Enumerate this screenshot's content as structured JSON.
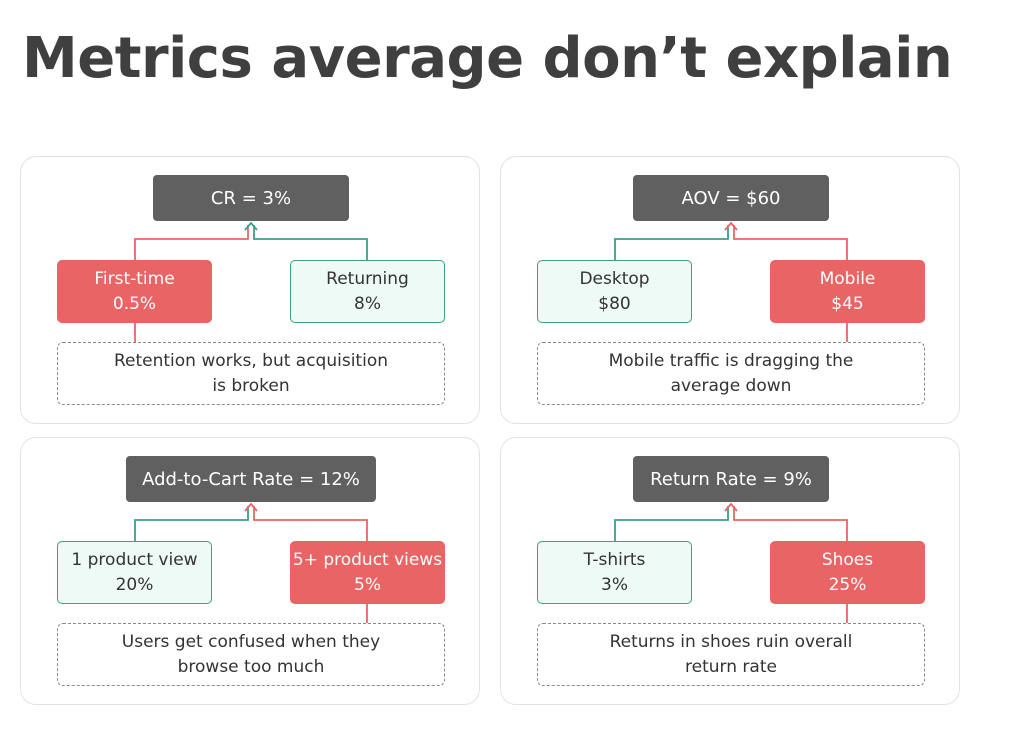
{
  "title": "Metrics average don’t explain",
  "colors": {
    "metric_box": "#606060",
    "good": "#3e9e86",
    "good_fill": "#eefaf6",
    "bad": "#e96464",
    "text": "#333333"
  },
  "cards": [
    {
      "metric": "CR = 3%",
      "left": {
        "label": "First-time",
        "value": "0.5%",
        "status": "bad"
      },
      "right": {
        "label": "Returning",
        "value": "8%",
        "status": "good"
      },
      "insight": {
        "line1": "Retention works, but acquisition",
        "line2": "is broken"
      }
    },
    {
      "metric": "AOV = $60",
      "left": {
        "label": "Desktop",
        "value": "$80",
        "status": "good"
      },
      "right": {
        "label": "Mobile",
        "value": "$45",
        "status": "bad"
      },
      "insight": {
        "line1": "Mobile traffic is dragging the",
        "line2": "average down"
      }
    },
    {
      "metric": "Add-to-Cart Rate = 12%",
      "left": {
        "label": "1 product view",
        "value": "20%",
        "status": "good"
      },
      "right": {
        "label": "5+ product views",
        "value": "5%",
        "status": "bad"
      },
      "insight": {
        "line1": "Users get confused when they",
        "line2": "browse too much"
      }
    },
    {
      "metric": "Return Rate = 9%",
      "left": {
        "label": "T-shirts",
        "value": "3%",
        "status": "good"
      },
      "right": {
        "label": "Shoes",
        "value": "25%",
        "status": "bad"
      },
      "insight": {
        "line1": "Returns in shoes ruin overall",
        "line2": "return rate"
      }
    }
  ]
}
